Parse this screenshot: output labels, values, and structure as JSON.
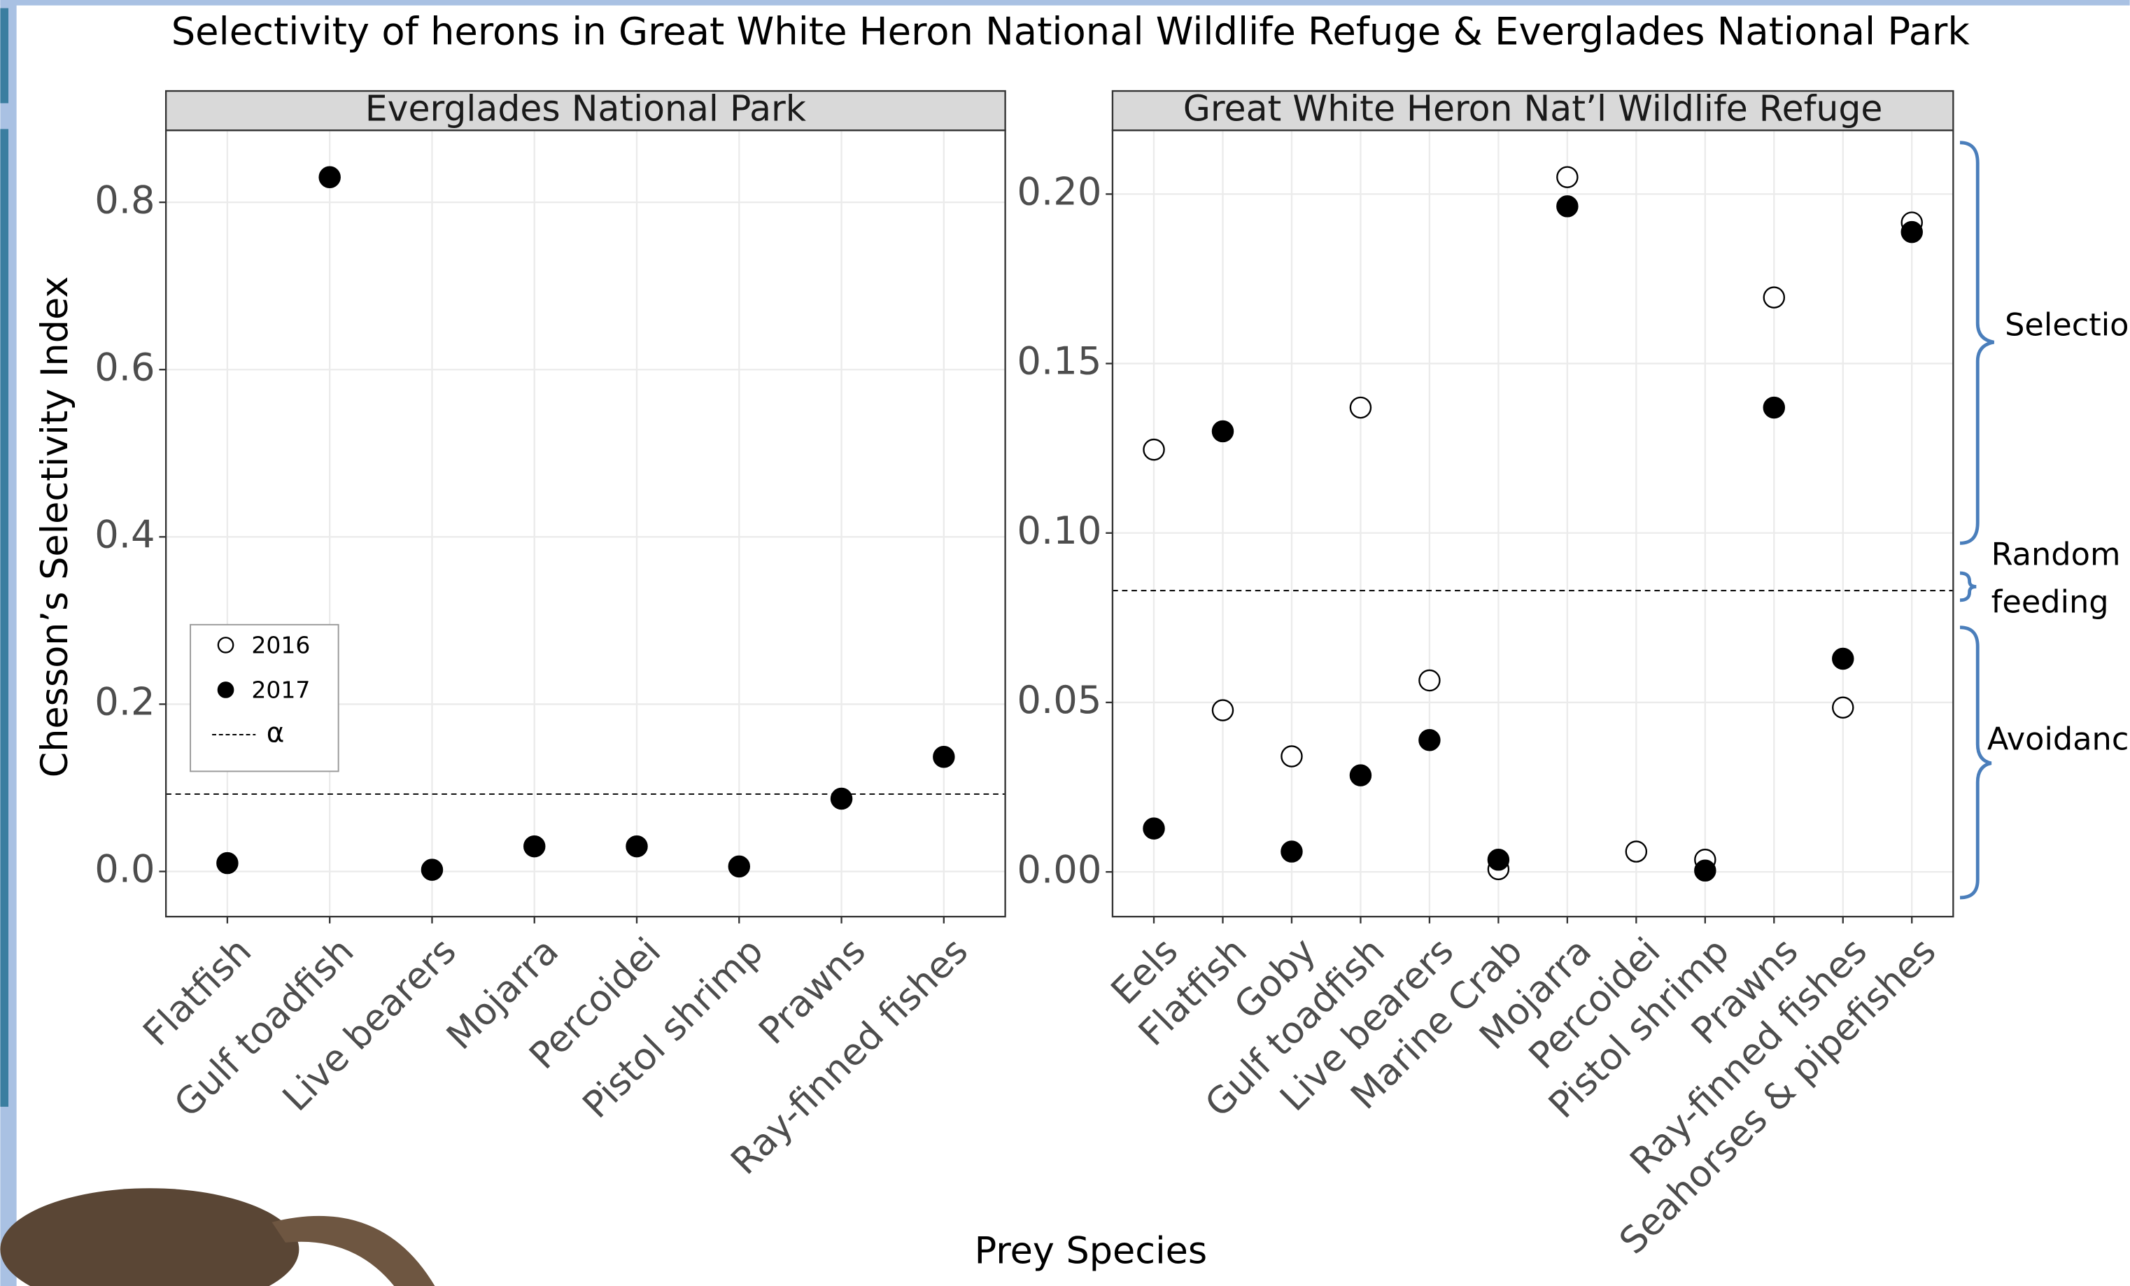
{
  "figure": {
    "title": "Selectivity of herons in Great White Heron National Wildlife Refuge & Everglades National Park",
    "y_label": "Chesson’s Selectivity Index",
    "x_label": "Prey Species",
    "annotations": [
      "Selectio",
      "Random",
      "feeding",
      "Avoidanc"
    ]
  },
  "chart_data": [
    {
      "type": "scatter",
      "title": "Everglades National Park",
      "categories": [
        "Flatfish",
        "Gulf toadfish",
        "Live bearers",
        "Mojarra",
        "Percoidei",
        "Pistol shrimp",
        "Prawns",
        "Ray-finned fishes"
      ],
      "series": [
        {
          "name": "2016",
          "color": "#000000",
          "filled": false,
          "values": [
            null,
            null,
            null,
            null,
            null,
            null,
            null,
            null
          ]
        },
        {
          "name": "2017",
          "color": "#000000",
          "filled": true,
          "values": [
            0.01,
            0.83,
            0.002,
            0.03,
            0.03,
            0.006,
            0.087,
            0.137
          ]
        }
      ],
      "alpha": 0.0925,
      "alpha_label": "α",
      "ylim": [
        -0.054,
        0.886
      ],
      "yticks": [
        {
          "value": 0,
          "label": "0.0"
        },
        0.2,
        0.4,
        0.6,
        0.8
      ],
      "grid": true,
      "legend": true
    },
    {
      "type": "scatter",
      "title": "Great White Heron Nat’l Wildlife Refuge",
      "categories": [
        "Eels",
        "Flatfish",
        "Goby",
        "Gulf toadfish",
        "Live bearers",
        "Marine Crab",
        "Mojarra",
        "Percoidei",
        "Pistol shrimp",
        "Prawns",
        "Ray-finned fishes",
        "Seahorses & pipefishes"
      ],
      "series": [
        {
          "name": "2016",
          "color": "#000000",
          "filled": false,
          "values": [
            0.1246,
            0.0477,
            0.0341,
            0.137,
            0.0565,
            0.0008,
            0.205,
            0.006,
            0.0036,
            0.1695,
            0.0485,
            0.1916
          ]
        },
        {
          "name": "2017",
          "color": "#000000",
          "filled": true,
          "values": [
            0.0128,
            0.13,
            0.006,
            0.0285,
            0.0389,
            0.0036,
            0.1964,
            null,
            0.0004,
            0.137,
            0.0629,
            0.1888
          ]
        }
      ],
      "alpha": 0.083,
      "ylim": [
        -0.0132,
        0.2188
      ],
      "yticks": [
        {
          "value": 0,
          "label": "0.00"
        },
        {
          "value": 0.05,
          "label": "0.05"
        },
        {
          "value": 0.1,
          "label": "0.10"
        },
        {
          "value": 0.15,
          "label": "0.15"
        },
        {
          "value": 0.2,
          "label": "0.20"
        }
      ],
      "grid": true,
      "legend": false
    }
  ]
}
